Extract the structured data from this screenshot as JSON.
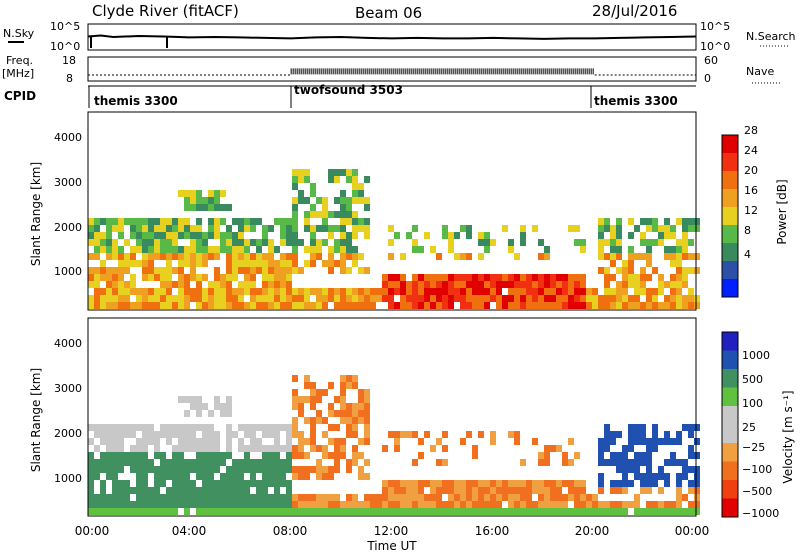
{
  "header": {
    "station": "Clyde River (fitACF)",
    "beam": "Beam 06",
    "date": "28/Jul/2016"
  },
  "top_labels": {
    "nsky": "N.Sky",
    "freq_line1": "Freq.",
    "freq_line2": "[MHz]",
    "cpid": "CPID",
    "nsearch": "N.Search",
    "nave": "Nave"
  },
  "colors": {
    "power": [
      "#0020ff",
      "#2c50a8",
      "#3a8a60",
      "#58b848",
      "#e8d020",
      "#f0a020",
      "#f07010",
      "#f03010",
      "#e00000"
    ],
    "velocity": [
      "#e00000",
      "#f04010",
      "#f07020",
      "#f0a040",
      "#c8c8c8",
      "#c8c8c8",
      "#60c040",
      "#409060",
      "#2050b0",
      "#2020c0"
    ]
  },
  "chart_data": [
    {
      "type": "line",
      "name": "nsky-nsearch",
      "yticks_left": [
        "10^5",
        "10^0"
      ],
      "yticks_right": [
        "10^5",
        "10^0"
      ],
      "x_hours": [
        0,
        0.5,
        1,
        2,
        3,
        4,
        5,
        6,
        7,
        8,
        9,
        10,
        11,
        12,
        13,
        14,
        15,
        16,
        17,
        18,
        19,
        20,
        21,
        22,
        23,
        24
      ],
      "series": [
        {
          "values": [
            2.4,
            2.6,
            2.3,
            2.5,
            2.4,
            2.2,
            2.3,
            2.2,
            2.1,
            2.0,
            2.2,
            2.3,
            2.1,
            2.0,
            2.1,
            2.0,
            2.0,
            2.1,
            2.0,
            1.9,
            2.0,
            2.0,
            2.1,
            2.2,
            2.3,
            2.4
          ]
        }
      ]
    },
    {
      "type": "scatter",
      "name": "freq-nave",
      "yticks_left": [
        "18",
        "8"
      ],
      "yticks_right": [
        "60",
        "0"
      ],
      "segments": [
        {
          "start_hour": 0,
          "end_hour": 8,
          "freq_mhz": 10.5
        },
        {
          "start_hour": 8,
          "end_hour": 20,
          "freq_mhz": 12
        },
        {
          "start_hour": 20,
          "end_hour": 24,
          "freq_mhz": 10.5
        }
      ]
    },
    {
      "type": "table",
      "name": "cpid",
      "entries": [
        {
          "label": "themis 3300",
          "start_hour": 0
        },
        {
          "label": "twofsound 3503",
          "start_hour": 8
        },
        {
          "label": "themis 3300",
          "start_hour": 20
        }
      ]
    },
    {
      "type": "heatmap",
      "name": "power",
      "ylabel": "Slant Range [km]",
      "yticks": [
        "1000",
        "2000",
        "3000",
        "4000"
      ],
      "ylim": [
        200,
        4600
      ],
      "colorbar_label": "Power [dB]",
      "colorbar_ticks": [
        "4",
        "8",
        "12",
        "16",
        "20",
        "24",
        "28"
      ]
    },
    {
      "type": "heatmap",
      "name": "velocity",
      "ylabel": "Slant Range [km]",
      "yticks": [
        "1000",
        "2000",
        "3000",
        "4000"
      ],
      "ylim": [
        200,
        4600
      ],
      "colorbar_label": "Velocity [m s⁻¹]",
      "colorbar_ticks": [
        "1000",
        "500",
        "100",
        "25",
        "−25",
        "−100",
        "−500",
        "−1000"
      ],
      "xlabel": "Time UT",
      "xticks": [
        "00:00",
        "04:00",
        "08:00",
        "12:00",
        "16:00",
        "20:00",
        "00:00"
      ]
    }
  ]
}
